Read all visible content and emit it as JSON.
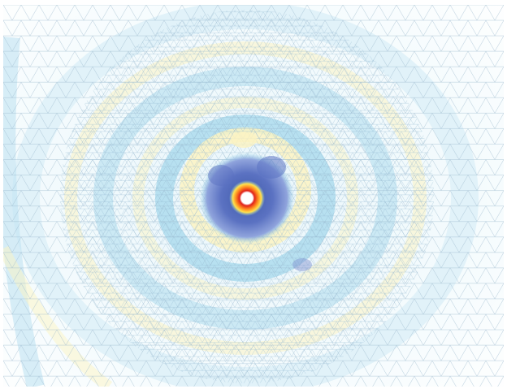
{
  "figure": {
    "kind": "triangulated mesh field plot",
    "colors": {
      "background": "#ffffff",
      "mesh_wire": "#8fb6cf",
      "mesh_wire_dark": "#6d6fa8",
      "low_tint": "#bfe3f2",
      "mid_tint": "#fbf3c2",
      "ring_cyan": "#8fd2e6",
      "core_blue": "#5b72c2",
      "core_inner": "#3f5aa8",
      "hot_yellow": "#ffe14d",
      "hot_orange": "#ff8a1f",
      "hot_red": "#e0201b",
      "center_white": "#ffffff"
    }
  }
}
